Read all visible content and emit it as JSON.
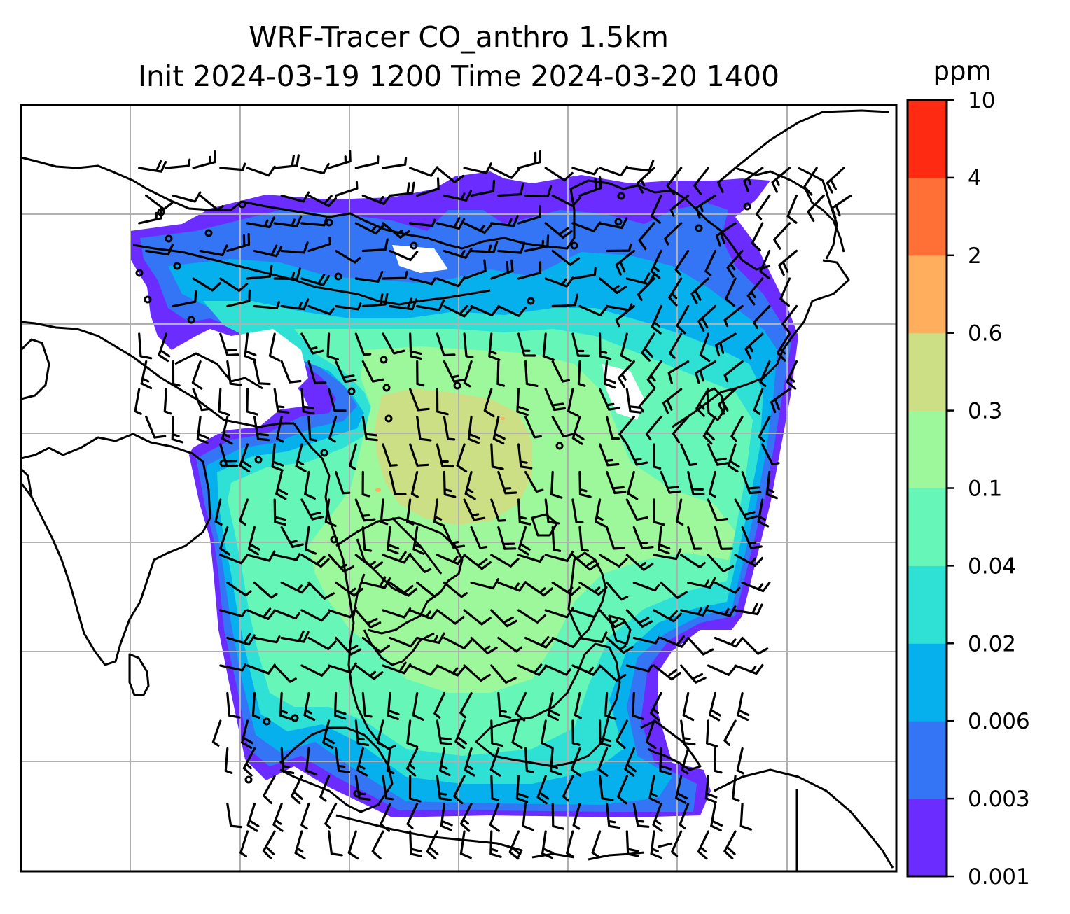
{
  "title_line1": "WRF-Tracer CO_anthro 1.5km",
  "title_line2": "Init 2024-03-19 1200 Time 2024-03-20 1400",
  "colorbar": {
    "unit": "ppm",
    "levels": [
      "0.001",
      "0.003",
      "0.006",
      "0.02",
      "0.04",
      "0.1",
      "0.3",
      "0.6",
      "2",
      "4",
      "10"
    ],
    "colors": [
      "#6a2cff",
      "#3375f5",
      "#06b0ec",
      "#2fe0d5",
      "#66f7b8",
      "#9cf89b",
      "#cddf85",
      "#ffae5e",
      "#ff7036",
      "#ff2a12"
    ]
  },
  "map": {
    "gridline_color": "#b0b0b0",
    "coastline_color": "#000000",
    "wind_barb_color": "#000000"
  }
}
